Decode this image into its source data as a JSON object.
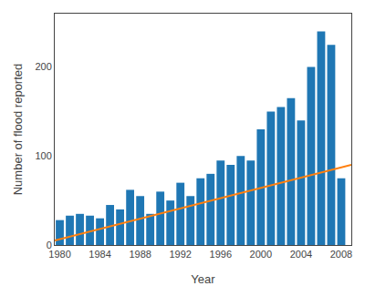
{
  "chart_data": {
    "type": "bar",
    "x": [
      1980,
      1981,
      1982,
      1983,
      1984,
      1985,
      1986,
      1987,
      1988,
      1989,
      1990,
      1991,
      1992,
      1993,
      1994,
      1995,
      1996,
      1997,
      1998,
      1999,
      2000,
      2001,
      2002,
      2003,
      2004,
      2005,
      2006,
      2007,
      2008
    ],
    "xlabel": "Year",
    "ylabel": "Number of flood reported",
    "series": [
      {
        "type": "bar",
        "values": [
          28,
          33,
          35,
          33,
          30,
          45,
          40,
          62,
          55,
          35,
          60,
          50,
          70,
          55,
          75,
          80,
          95,
          90,
          100,
          95,
          130,
          150,
          155,
          165,
          140,
          200,
          240,
          225,
          75
        ]
      },
      {
        "type": "line",
        "x": [
          1979.5,
          2009.0
        ],
        "values": [
          5,
          90
        ]
      }
    ],
    "xlim": [
      1979.5,
      2009.0
    ],
    "xticks": [
      1980,
      1984,
      1988,
      1992,
      1996,
      2000,
      2004,
      2008
    ],
    "ylim": [
      0,
      260
    ],
    "yticks": [
      0,
      100,
      200
    ],
    "grid": false
  }
}
